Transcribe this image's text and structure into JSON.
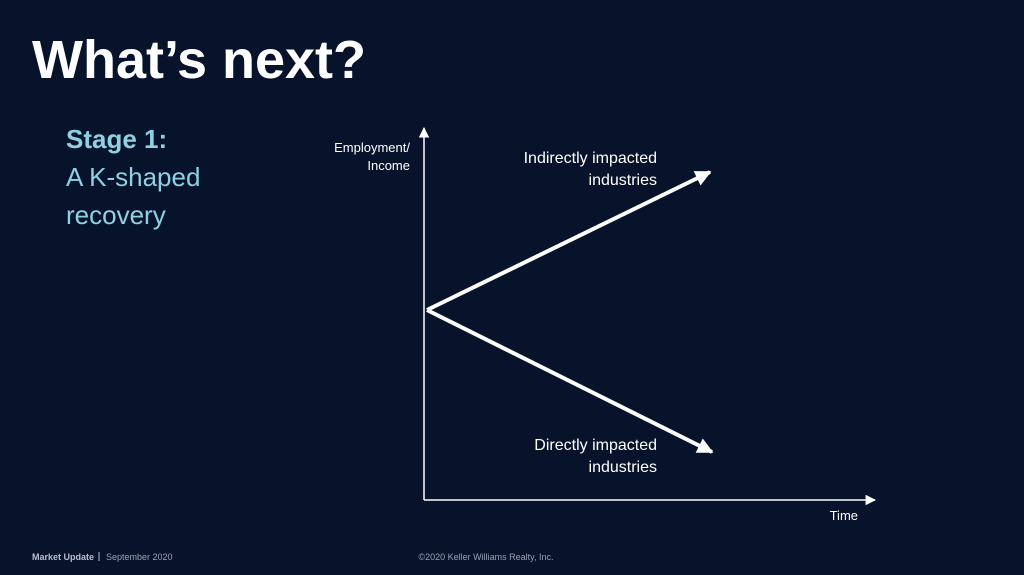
{
  "header": {
    "title": "What’s next?"
  },
  "sidebar": {
    "stage": "Stage 1:",
    "lines": [
      "A K-shaped",
      "recovery"
    ]
  },
  "diagram": {
    "y_axis_label": [
      "Employment/",
      "Income"
    ],
    "x_axis_label": "Time",
    "upper_branch": [
      "Indirectly impacted",
      "industries"
    ],
    "lower_branch": [
      "Directly impacted",
      "industries"
    ]
  },
  "footer": {
    "section": "Market Update",
    "date": "September 2020",
    "copyright": "©2020 Keller Williams Realty, Inc."
  }
}
